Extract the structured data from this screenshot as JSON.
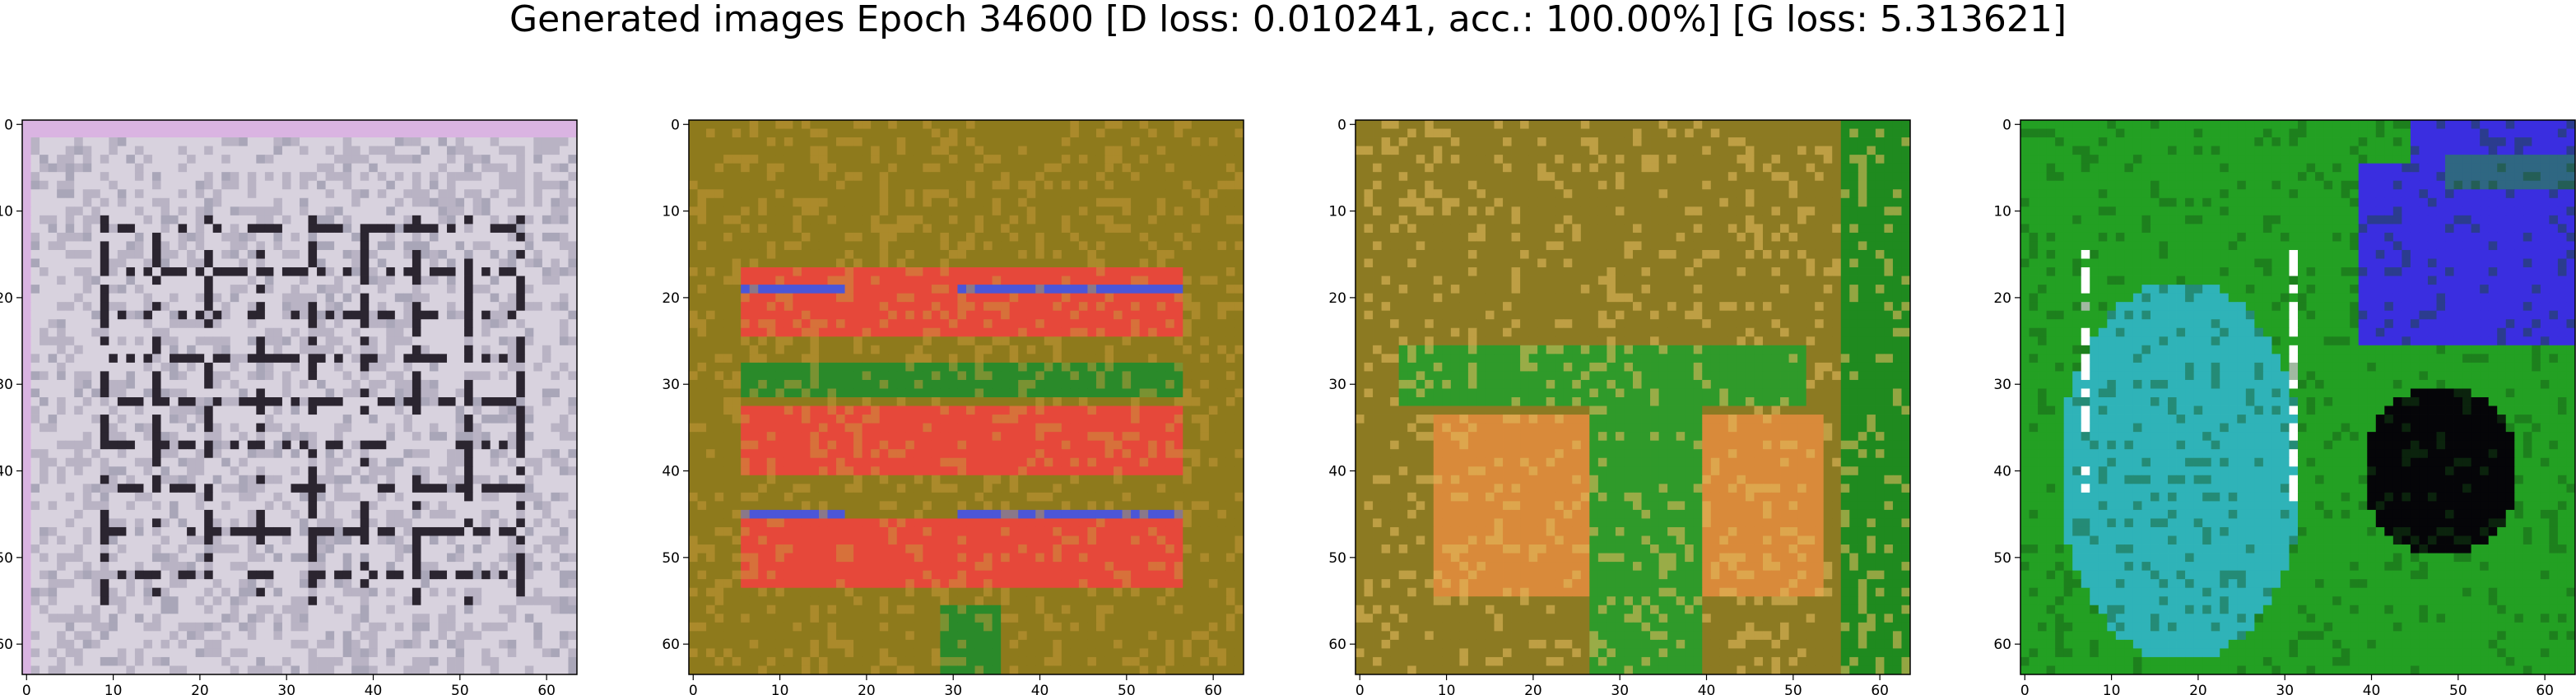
{
  "title": "Generated images Epoch 34600 [D loss: 0.010241, acc.: 100.00%] [G loss: 5.313621]",
  "chart_data": [
    {
      "type": "heatmap",
      "description": "generated image 1 (64x64 RGB), greyish-white with dark grid lines",
      "palette": [
        "#d8d2de",
        "#b9b3c4",
        "#2b2530",
        "#a9a6b8"
      ],
      "xlim": [
        0,
        63
      ],
      "ylim": [
        63,
        0
      ],
      "xticks": [
        0,
        10,
        20,
        30,
        40,
        50,
        60
      ],
      "yticks": [
        0,
        10,
        20,
        30,
        40,
        50,
        60
      ]
    },
    {
      "type": "heatmap",
      "description": "generated image 2 (64x64 RGB), olive/orange with red and blue horizontal bands",
      "palette": [
        "#8e7a1c",
        "#e6483a",
        "#2a8a2a",
        "#4b56d8",
        "#c89a3a"
      ],
      "xlim": [
        0,
        63
      ],
      "ylim": [
        63,
        0
      ],
      "xticks": [
        0,
        10,
        20,
        30,
        40,
        50,
        60
      ],
      "yticks": [
        0,
        10,
        20,
        30,
        40,
        50,
        60
      ]
    },
    {
      "type": "heatmap",
      "description": "generated image 3 (64x64 RGB), olive/orange with green regions and green right edge",
      "palette": [
        "#8c7a22",
        "#d98a3a",
        "#2f9a2a",
        "#e0b85a",
        "#1f8a1f"
      ],
      "xlim": [
        0,
        63
      ],
      "ylim": [
        63,
        0
      ],
      "xticks": [
        0,
        10,
        20,
        30,
        40,
        50,
        60
      ],
      "yticks": [
        0,
        10,
        20,
        30,
        40,
        50,
        60
      ]
    },
    {
      "type": "heatmap",
      "description": "generated image 4 (64x64 RGB), green background, cyan shape left, blue shape top-right, black blob",
      "palette": [
        "#23a023",
        "#2fb3b8",
        "#3a2ee0",
        "#050508",
        "#ffffff"
      ],
      "xlim": [
        0,
        63
      ],
      "ylim": [
        63,
        0
      ],
      "xticks": [
        0,
        10,
        20,
        30,
        40,
        50,
        60
      ],
      "yticks": [
        0,
        10,
        20,
        30,
        40,
        50,
        60
      ]
    }
  ]
}
